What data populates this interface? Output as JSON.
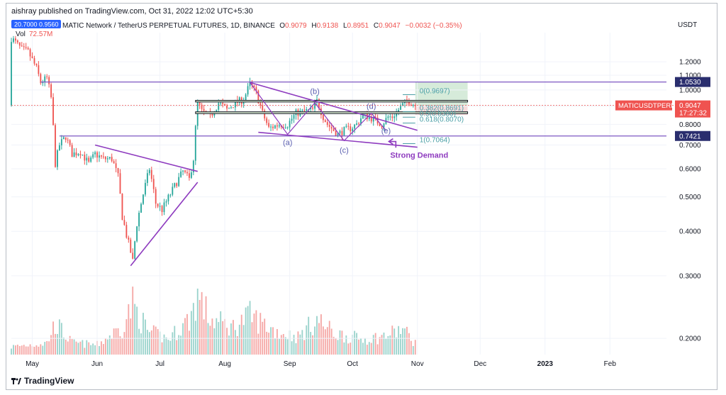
{
  "publisher_line": "aishray published on TradingView.com, Oct 31, 2022 12:02 UTC+5:30",
  "brand": "TradingView",
  "symbol_title": "MATIC Network / TetherUS PERPETUAL FUTURES, 1D, BINANCE",
  "symbol_badge": "20.7000 0.9560",
  "ohlc": {
    "o_label": "O",
    "o": "0.9079",
    "h_label": "H",
    "h": "0.9138",
    "l_label": "L",
    "l": "0.8951",
    "c_label": "C",
    "c": "0.9047",
    "change": "−0.0032 (−0.35%)"
  },
  "volume": {
    "label": "Vol",
    "value": "72.57M"
  },
  "colors": {
    "up": "#26a69a",
    "down": "#ef5350",
    "up_vol": "#9ad3cc",
    "down_vol": "#f5a7a5",
    "drawing": "#8e3bbf",
    "level_line": "#7e57c2",
    "fib": "#4b9fa6",
    "price_tag": "#ef5350",
    "profit": "#cfe8d3",
    "loss": "#f6d6d6"
  },
  "chart_data": {
    "type": "candlestick",
    "title": "MATIC Network / TetherUS PERPETUAL FUTURES, 1D, BINANCE",
    "y_axis_unit": "USDT",
    "y_scale": "log",
    "ylim": [
      0.18,
      1.45
    ],
    "y_ticks": [
      {
        "value": 1.2,
        "label": "1.2000"
      },
      {
        "value": 1.1,
        "label": "1.1000"
      },
      {
        "value": 1.0,
        "label": "1.0000"
      },
      {
        "value": 0.9,
        "label": "0.9000"
      },
      {
        "value": 0.8,
        "label": "0.8000"
      },
      {
        "value": 0.7,
        "label": "0.7000"
      },
      {
        "value": 0.6,
        "label": "0.6000"
      },
      {
        "value": 0.5,
        "label": "0.5000"
      },
      {
        "value": 0.4,
        "label": "0.4000"
      },
      {
        "value": 0.3,
        "label": "0.3000"
      },
      {
        "value": 0.2,
        "label": "0.2000"
      }
    ],
    "x_ticks": [
      {
        "date": "2022-05-01",
        "label": "May"
      },
      {
        "date": "2022-06-01",
        "label": "Jun"
      },
      {
        "date": "2022-07-01",
        "label": "Jul"
      },
      {
        "date": "2022-08-01",
        "label": "Aug"
      },
      {
        "date": "2022-09-01",
        "label": "Sep"
      },
      {
        "date": "2022-10-01",
        "label": "Oct"
      },
      {
        "date": "2022-11-01",
        "label": "Nov"
      },
      {
        "date": "2022-12-01",
        "label": "Dec"
      },
      {
        "date": "2023-01-01",
        "label": "2023"
      },
      {
        "date": "2023-02-01",
        "label": "Feb"
      }
    ],
    "x_start": "2022-04-21",
    "x_end": "2023-02-28",
    "close_path": [
      [
        "2022-04-21",
        1.4
      ],
      [
        "2022-04-26",
        1.3
      ],
      [
        "2022-04-29",
        1.28
      ],
      [
        "2022-05-03",
        1.15
      ],
      [
        "2022-05-05",
        1.05
      ],
      [
        "2022-05-08",
        1.08
      ],
      [
        "2022-05-10",
        0.95
      ],
      [
        "2022-05-12",
        0.62
      ],
      [
        "2022-05-14",
        0.7
      ],
      [
        "2022-05-17",
        0.74
      ],
      [
        "2022-05-20",
        0.66
      ],
      [
        "2022-05-24",
        0.67
      ],
      [
        "2022-05-28",
        0.62
      ],
      [
        "2022-05-31",
        0.66
      ],
      [
        "2022-06-04",
        0.64
      ],
      [
        "2022-06-08",
        0.64
      ],
      [
        "2022-06-11",
        0.57
      ],
      [
        "2022-06-13",
        0.44
      ],
      [
        "2022-06-15",
        0.39
      ],
      [
        "2022-06-18",
        0.33
      ],
      [
        "2022-06-20",
        0.42
      ],
      [
        "2022-06-23",
        0.51
      ],
      [
        "2022-06-26",
        0.6
      ],
      [
        "2022-06-29",
        0.48
      ],
      [
        "2022-07-02",
        0.46
      ],
      [
        "2022-07-06",
        0.51
      ],
      [
        "2022-07-09",
        0.55
      ],
      [
        "2022-07-12",
        0.59
      ],
      [
        "2022-07-15",
        0.56
      ],
      [
        "2022-07-17",
        0.64
      ],
      [
        "2022-07-19",
        0.92
      ],
      [
        "2022-07-21",
        0.87
      ],
      [
        "2022-07-25",
        0.84
      ],
      [
        "2022-07-29",
        0.92
      ],
      [
        "2022-08-02",
        0.88
      ],
      [
        "2022-08-06",
        0.92
      ],
      [
        "2022-08-10",
        0.94
      ],
      [
        "2022-08-13",
        1.04
      ],
      [
        "2022-08-16",
        0.98
      ],
      [
        "2022-08-19",
        0.86
      ],
      [
        "2022-08-22",
        0.78
      ],
      [
        "2022-08-27",
        0.8
      ],
      [
        "2022-08-31",
        0.8
      ],
      [
        "2022-09-04",
        0.86
      ],
      [
        "2022-09-08",
        0.87
      ],
      [
        "2022-09-12",
        0.88
      ],
      [
        "2022-09-14",
        0.93
      ],
      [
        "2022-09-17",
        0.84
      ],
      [
        "2022-09-19",
        0.8
      ],
      [
        "2022-09-22",
        0.77
      ],
      [
        "2022-09-24",
        0.75
      ],
      [
        "2022-09-27",
        0.77
      ],
      [
        "2022-09-30",
        0.78
      ],
      [
        "2022-10-03",
        0.8
      ],
      [
        "2022-10-06",
        0.85
      ],
      [
        "2022-10-09",
        0.84
      ],
      [
        "2022-10-12",
        0.82
      ],
      [
        "2022-10-15",
        0.8
      ],
      [
        "2022-10-18",
        0.84
      ],
      [
        "2022-10-20",
        0.84
      ],
      [
        "2022-10-23",
        0.88
      ],
      [
        "2022-10-26",
        0.92
      ],
      [
        "2022-10-28",
        0.93
      ],
      [
        "2022-10-31",
        0.9047
      ]
    ],
    "volume_path": [
      [
        "2022-04-21",
        20
      ],
      [
        "2022-05-08",
        30
      ],
      [
        "2022-05-12",
        80
      ],
      [
        "2022-05-20",
        30
      ],
      [
        "2022-06-01",
        25
      ],
      [
        "2022-06-13",
        70
      ],
      [
        "2022-06-18",
        130
      ],
      [
        "2022-06-25",
        60
      ],
      [
        "2022-07-05",
        40
      ],
      [
        "2022-07-15",
        90
      ],
      [
        "2022-07-19",
        150
      ],
      [
        "2022-07-25",
        90
      ],
      [
        "2022-08-05",
        70
      ],
      [
        "2022-08-13",
        100
      ],
      [
        "2022-08-25",
        60
      ],
      [
        "2022-09-05",
        45
      ],
      [
        "2022-09-14",
        90
      ],
      [
        "2022-09-22",
        55
      ],
      [
        "2022-10-05",
        40
      ],
      [
        "2022-10-15",
        45
      ],
      [
        "2022-10-25",
        65
      ],
      [
        "2022-10-31",
        30
      ]
    ],
    "horizontal_levels": [
      {
        "value": 1.053,
        "label": "1.0530"
      },
      {
        "value": 0.7421,
        "label": "0.7421"
      }
    ],
    "fib_levels": [
      {
        "value": 0.9697,
        "label": "0(0.9697)"
      },
      {
        "value": 0.8691,
        "label": "0.382(0.8691)"
      },
      {
        "value": 0.838,
        "label": "0.5(0.8380)"
      },
      {
        "value": 0.807,
        "label": "0.618(0.8070)"
      },
      {
        "value": 0.7064,
        "label": "1(0.7064)"
      }
    ],
    "last_price": {
      "value": 0.9047,
      "symbol": "MATICUSDTPERP",
      "price_label": "0.9047",
      "countdown": "17:27:32"
    },
    "position_box": {
      "start": "2022-10-31",
      "end": "2022-11-25",
      "entry": 0.9047,
      "target": 1.053,
      "stop": 0.85
    },
    "trendlines": [
      {
        "p1": [
          "2022-05-31",
          0.7
        ],
        "p2": [
          "2022-07-19",
          0.59
        ]
      },
      {
        "p1": [
          "2022-06-17",
          0.32
        ],
        "p2": [
          "2022-07-19",
          0.55
        ]
      },
      {
        "p1": [
          "2022-08-13",
          1.05
        ],
        "p2": [
          "2022-11-01",
          0.77
        ]
      },
      {
        "p1": [
          "2022-08-17",
          0.76
        ],
        "p2": [
          "2022-11-01",
          0.69
        ]
      }
    ],
    "support_zone": [
      {
        "value": 0.935
      },
      {
        "value": 0.925
      },
      {
        "value": 0.868
      },
      {
        "value": 0.858
      }
    ],
    "wave_path": [
      [
        "2022-08-13",
        1.05
      ],
      [
        "2022-08-31",
        0.75
      ],
      [
        "2022-09-13",
        0.92
      ],
      [
        "2022-09-27",
        0.72
      ],
      [
        "2022-10-10",
        0.86
      ],
      [
        "2022-10-17",
        0.77
      ]
    ],
    "wave_labels": [
      {
        "text": "(a)",
        "date": "2022-08-31",
        "value": 0.7
      },
      {
        "text": "(b)",
        "date": "2022-09-13",
        "value": 0.975
      },
      {
        "text": "(c)",
        "date": "2022-09-27",
        "value": 0.665
      },
      {
        "text": "(d)",
        "date": "2022-10-10",
        "value": 0.885
      },
      {
        "text": "(e)",
        "date": "2022-10-17",
        "value": 0.755
      }
    ],
    "annotation": {
      "text": "Strong Demand",
      "date": "2022-10-19",
      "value": 0.645,
      "arrow_to": [
        "2022-10-17",
        0.716
      ]
    }
  }
}
